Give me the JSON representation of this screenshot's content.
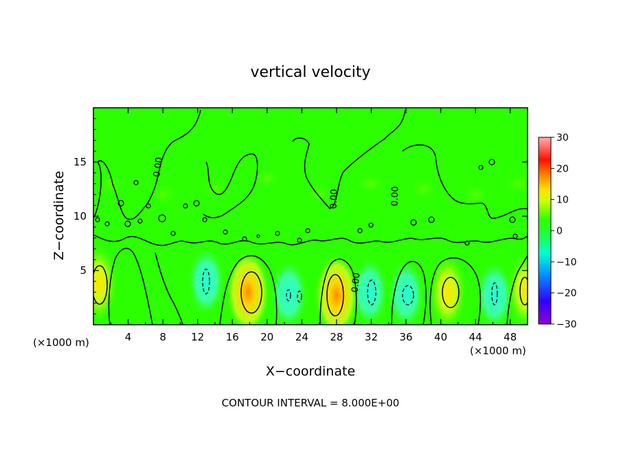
{
  "chart_data": {
    "type": "heatmap",
    "title": "vertical velocity",
    "xlabel": "X−coordinate",
    "ylabel": "Z−coordinate",
    "x_unit_left": "(×1000 m)",
    "x_unit_right": "(×1000 m)",
    "xlim": [
      0,
      50
    ],
    "ylim": [
      0,
      20
    ],
    "x_ticks": [
      4,
      8,
      12,
      16,
      20,
      24,
      28,
      32,
      36,
      40,
      44,
      48
    ],
    "y_ticks": [
      5,
      10,
      15
    ],
    "colorbar": {
      "range": [
        -30,
        30
      ],
      "ticks": [
        30,
        20,
        10,
        0,
        -10,
        -20,
        -30
      ],
      "tick_labels": [
        "30",
        "20",
        "10",
        "0",
        "−10",
        "−20",
        "−30"
      ]
    },
    "contour_interval_text": "CONTOUR INTERVAL = 8.000E+00",
    "contour_labels": [
      "0.00",
      "0.00",
      "0.00",
      "0.00",
      "0.00"
    ],
    "updraft_cores": [
      {
        "x": 0.6,
        "z": 3.8,
        "w": 10
      },
      {
        "x": 17.8,
        "z": 3.0,
        "w": 14
      },
      {
        "x": 28.0,
        "z": 2.7,
        "w": 16
      },
      {
        "x": 40.8,
        "z": 3.0,
        "w": 10
      },
      {
        "x": 49.8,
        "z": 3.2,
        "w": 9
      }
    ],
    "downdraft_cores": [
      {
        "x": 13.0,
        "z": 4.0,
        "w": -8
      },
      {
        "x": 22.5,
        "z": 2.8,
        "w": -7
      },
      {
        "x": 31.8,
        "z": 3.0,
        "w": -9
      },
      {
        "x": 36.0,
        "z": 2.8,
        "w": -9
      },
      {
        "x": 46.2,
        "z": 2.7,
        "w": -8
      }
    ]
  }
}
